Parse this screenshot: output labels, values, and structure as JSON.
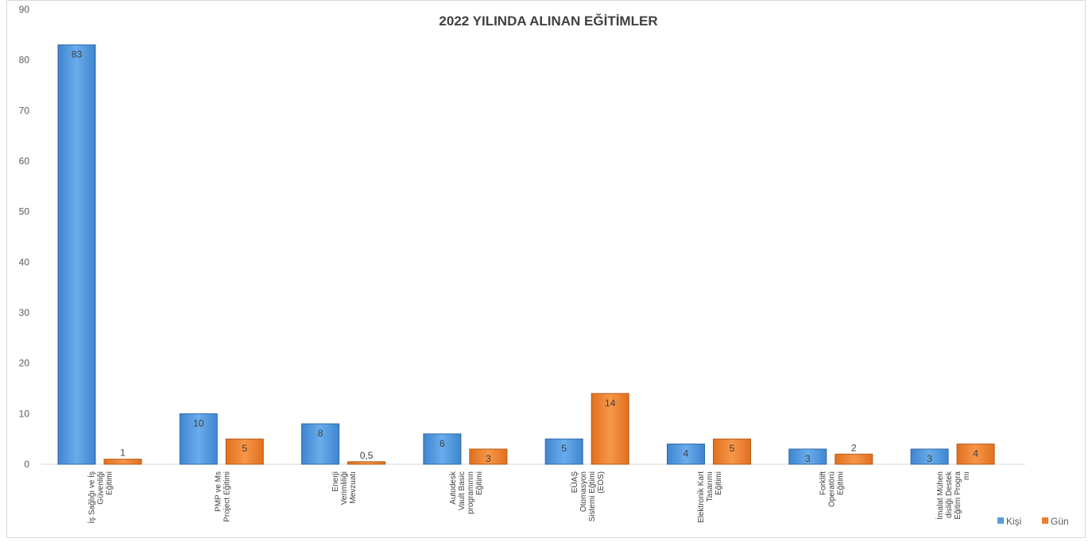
{
  "chart_data": {
    "type": "bar",
    "title": "2022 YILINDA ALINAN EĞİTİMLER",
    "xlabel": "",
    "ylabel": "",
    "ylim": [
      0,
      90
    ],
    "yticks": [
      0,
      10,
      20,
      30,
      40,
      50,
      60,
      70,
      80,
      90
    ],
    "grid": false,
    "legend_position": "bottom-right",
    "categories": [
      [
        "İş Sağlığı ve İş",
        "Güvenliği",
        "Eğitimi"
      ],
      [
        "PMP ve Ms",
        "Project Eğitimi"
      ],
      [
        "Enerji",
        "Verimliliği",
        "Mevzuatı"
      ],
      [
        "Autodesk",
        "Vault Basic",
        "programının",
        "Eğitimi"
      ],
      [
        "EÜAŞ",
        "Otomasyon",
        "Sistemi Eğtimi",
        "(EOS)"
      ],
      [
        "Elektronik Kart",
        "Tasarımı",
        "Eğitimi"
      ],
      [
        "Forklift",
        "Operatörü",
        "Eğitimi"
      ],
      [
        "İmalat Mühen",
        "disliği Destek",
        "Eğitim Progra",
        "mı"
      ]
    ],
    "series": [
      {
        "name": "Kişi",
        "color": "#5b9bd5",
        "values": [
          83,
          10,
          8,
          6,
          5,
          4,
          3,
          3
        ],
        "labels": [
          "83",
          "10",
          "8",
          "6",
          "5",
          "4",
          "3",
          "3"
        ]
      },
      {
        "name": "Gün",
        "color": "#ed7d31",
        "values": [
          1,
          5,
          0.5,
          3,
          14,
          5,
          2,
          4
        ],
        "labels": [
          "1",
          "5",
          "0,5",
          "3",
          "14",
          "5",
          "2",
          "4"
        ]
      }
    ]
  }
}
